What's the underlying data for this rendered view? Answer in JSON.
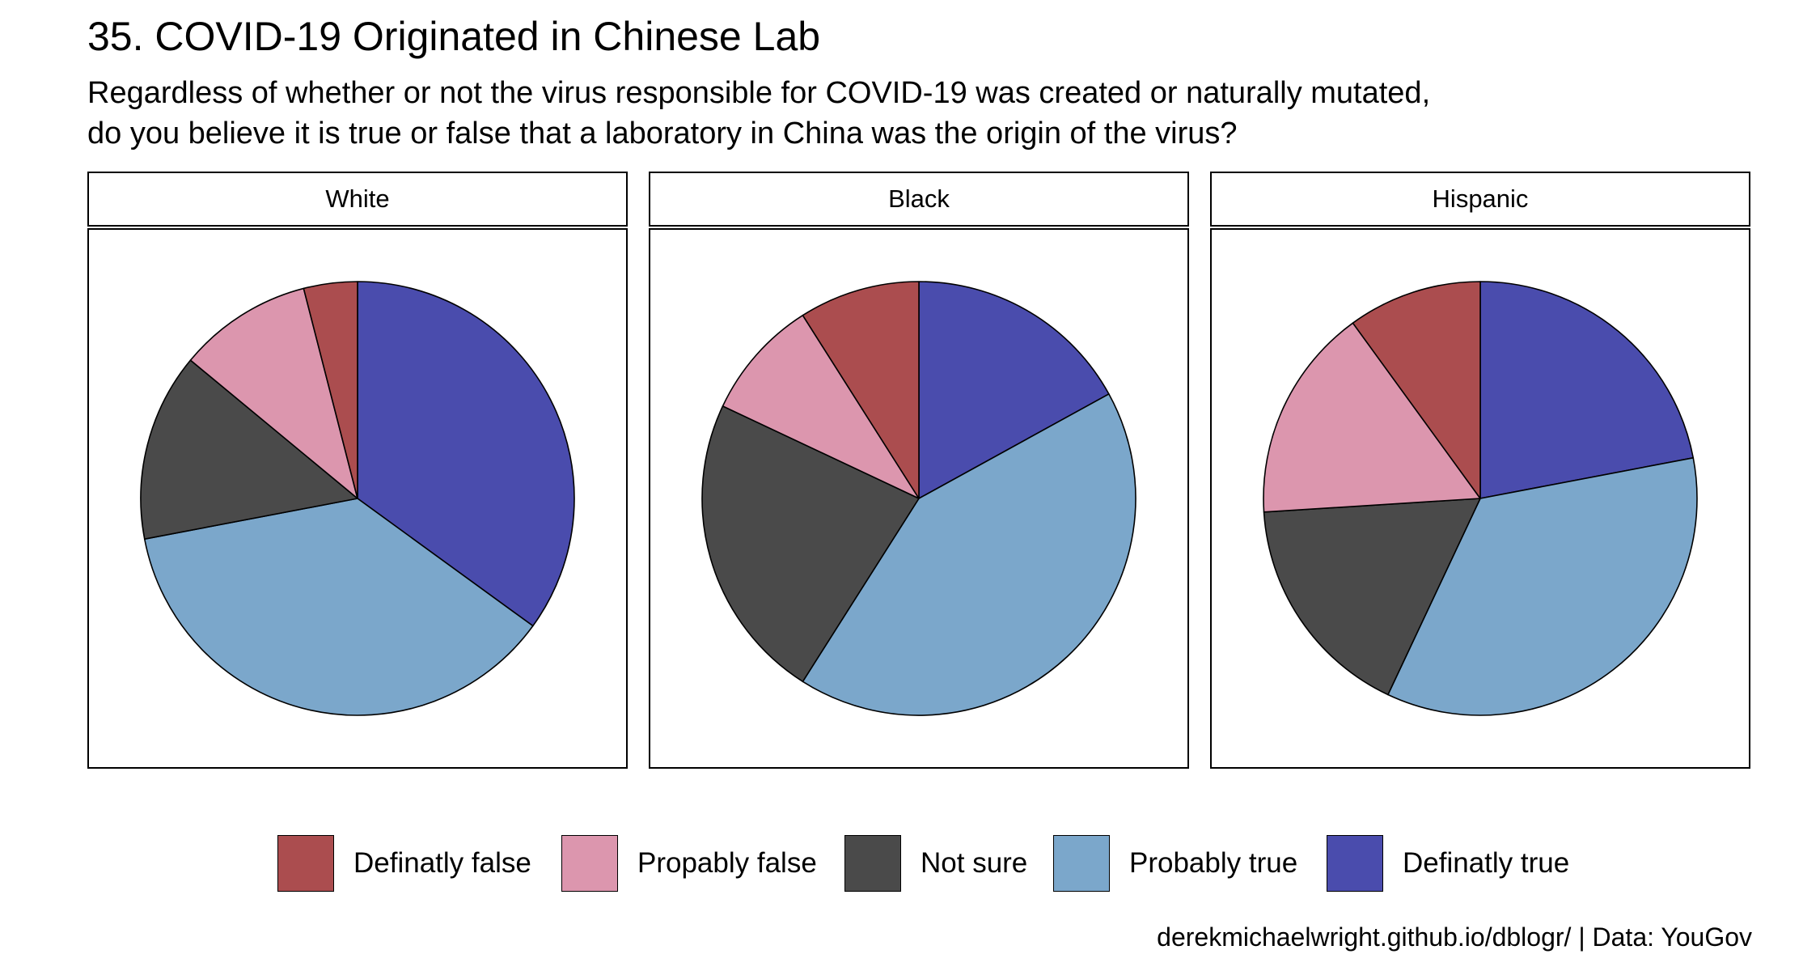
{
  "title": "35. COVID-19 Originated in Chinese Lab",
  "subtitle_lines": [
    "Regardless of whether or not the virus responsible for COVID-19 was created or naturally mutated,",
    "do you believe it is true or false that a laboratory in China was the origin of the virus?"
  ],
  "caption": "derekmichaelwright.github.io/dblogr/ | Data: YouGov",
  "chart_data": {
    "type": "pie",
    "categories": [
      "Definatly false",
      "Propably false",
      "Not sure",
      "Probably true",
      "Definatly true"
    ],
    "colors": [
      "#ab4d4f",
      "#dc96ae",
      "#4a4a4a",
      "#7ba7cb",
      "#4a4cad"
    ],
    "legend_position": "bottom",
    "panels": [
      {
        "name": "White",
        "values": [
          4,
          10,
          14,
          37,
          35
        ]
      },
      {
        "name": "Black",
        "values": [
          9,
          9,
          23,
          42,
          17
        ]
      },
      {
        "name": "Hispanic",
        "values": [
          10,
          16,
          17,
          35,
          22
        ]
      }
    ]
  }
}
